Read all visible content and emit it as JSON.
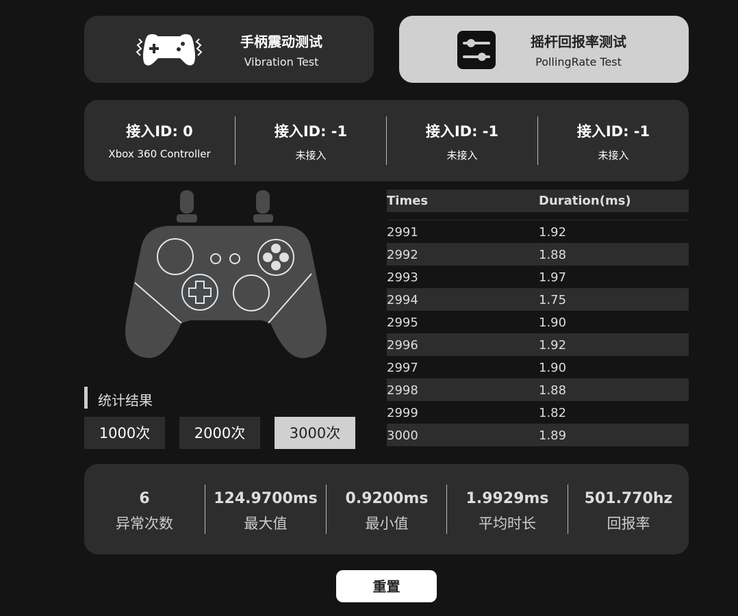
{
  "tabs": [
    {
      "title": "手柄震动测试",
      "subtitle": "Vibration Test",
      "icon": "gamepad-vibration-icon",
      "active": false
    },
    {
      "title": "摇杆回报率测试",
      "subtitle": "PollingRate Test",
      "icon": "sliders-icon",
      "active": true
    }
  ],
  "connections": [
    {
      "label": "接入ID: 0",
      "status": "Xbox 360 Controller"
    },
    {
      "label": "接入ID: -1",
      "status": "未接入"
    },
    {
      "label": "接入ID: -1",
      "status": "未接入"
    },
    {
      "label": "接入ID: -1",
      "status": "未接入"
    }
  ],
  "table": {
    "headers": [
      "Times",
      "Duration(ms)"
    ],
    "rows": [
      [
        "2991",
        "1.92"
      ],
      [
        "2992",
        "1.88"
      ],
      [
        "2993",
        "1.97"
      ],
      [
        "2994",
        "1.75"
      ],
      [
        "2995",
        "1.90"
      ],
      [
        "2996",
        "1.92"
      ],
      [
        "2997",
        "1.90"
      ],
      [
        "2998",
        "1.88"
      ],
      [
        "2999",
        "1.82"
      ],
      [
        "3000",
        "1.89"
      ]
    ]
  },
  "summary_title": "统计结果",
  "count_options": [
    "1000次",
    "2000次",
    "3000次"
  ],
  "selected_count": "3000次",
  "stats": [
    {
      "value": "6",
      "label": "异常次数"
    },
    {
      "value": "124.9700ms",
      "label": "最大值"
    },
    {
      "value": "0.9200ms",
      "label": "最小值"
    },
    {
      "value": "1.9929ms",
      "label": "平均时长"
    },
    {
      "value": "501.770hz",
      "label": "回报率"
    }
  ],
  "reset_label": "重置",
  "colors": {
    "background": "#141414",
    "panel": "#2d2d2d",
    "active": "#d0d0d0",
    "controller": "#4a4a4a",
    "outline": "#dde6ee"
  }
}
